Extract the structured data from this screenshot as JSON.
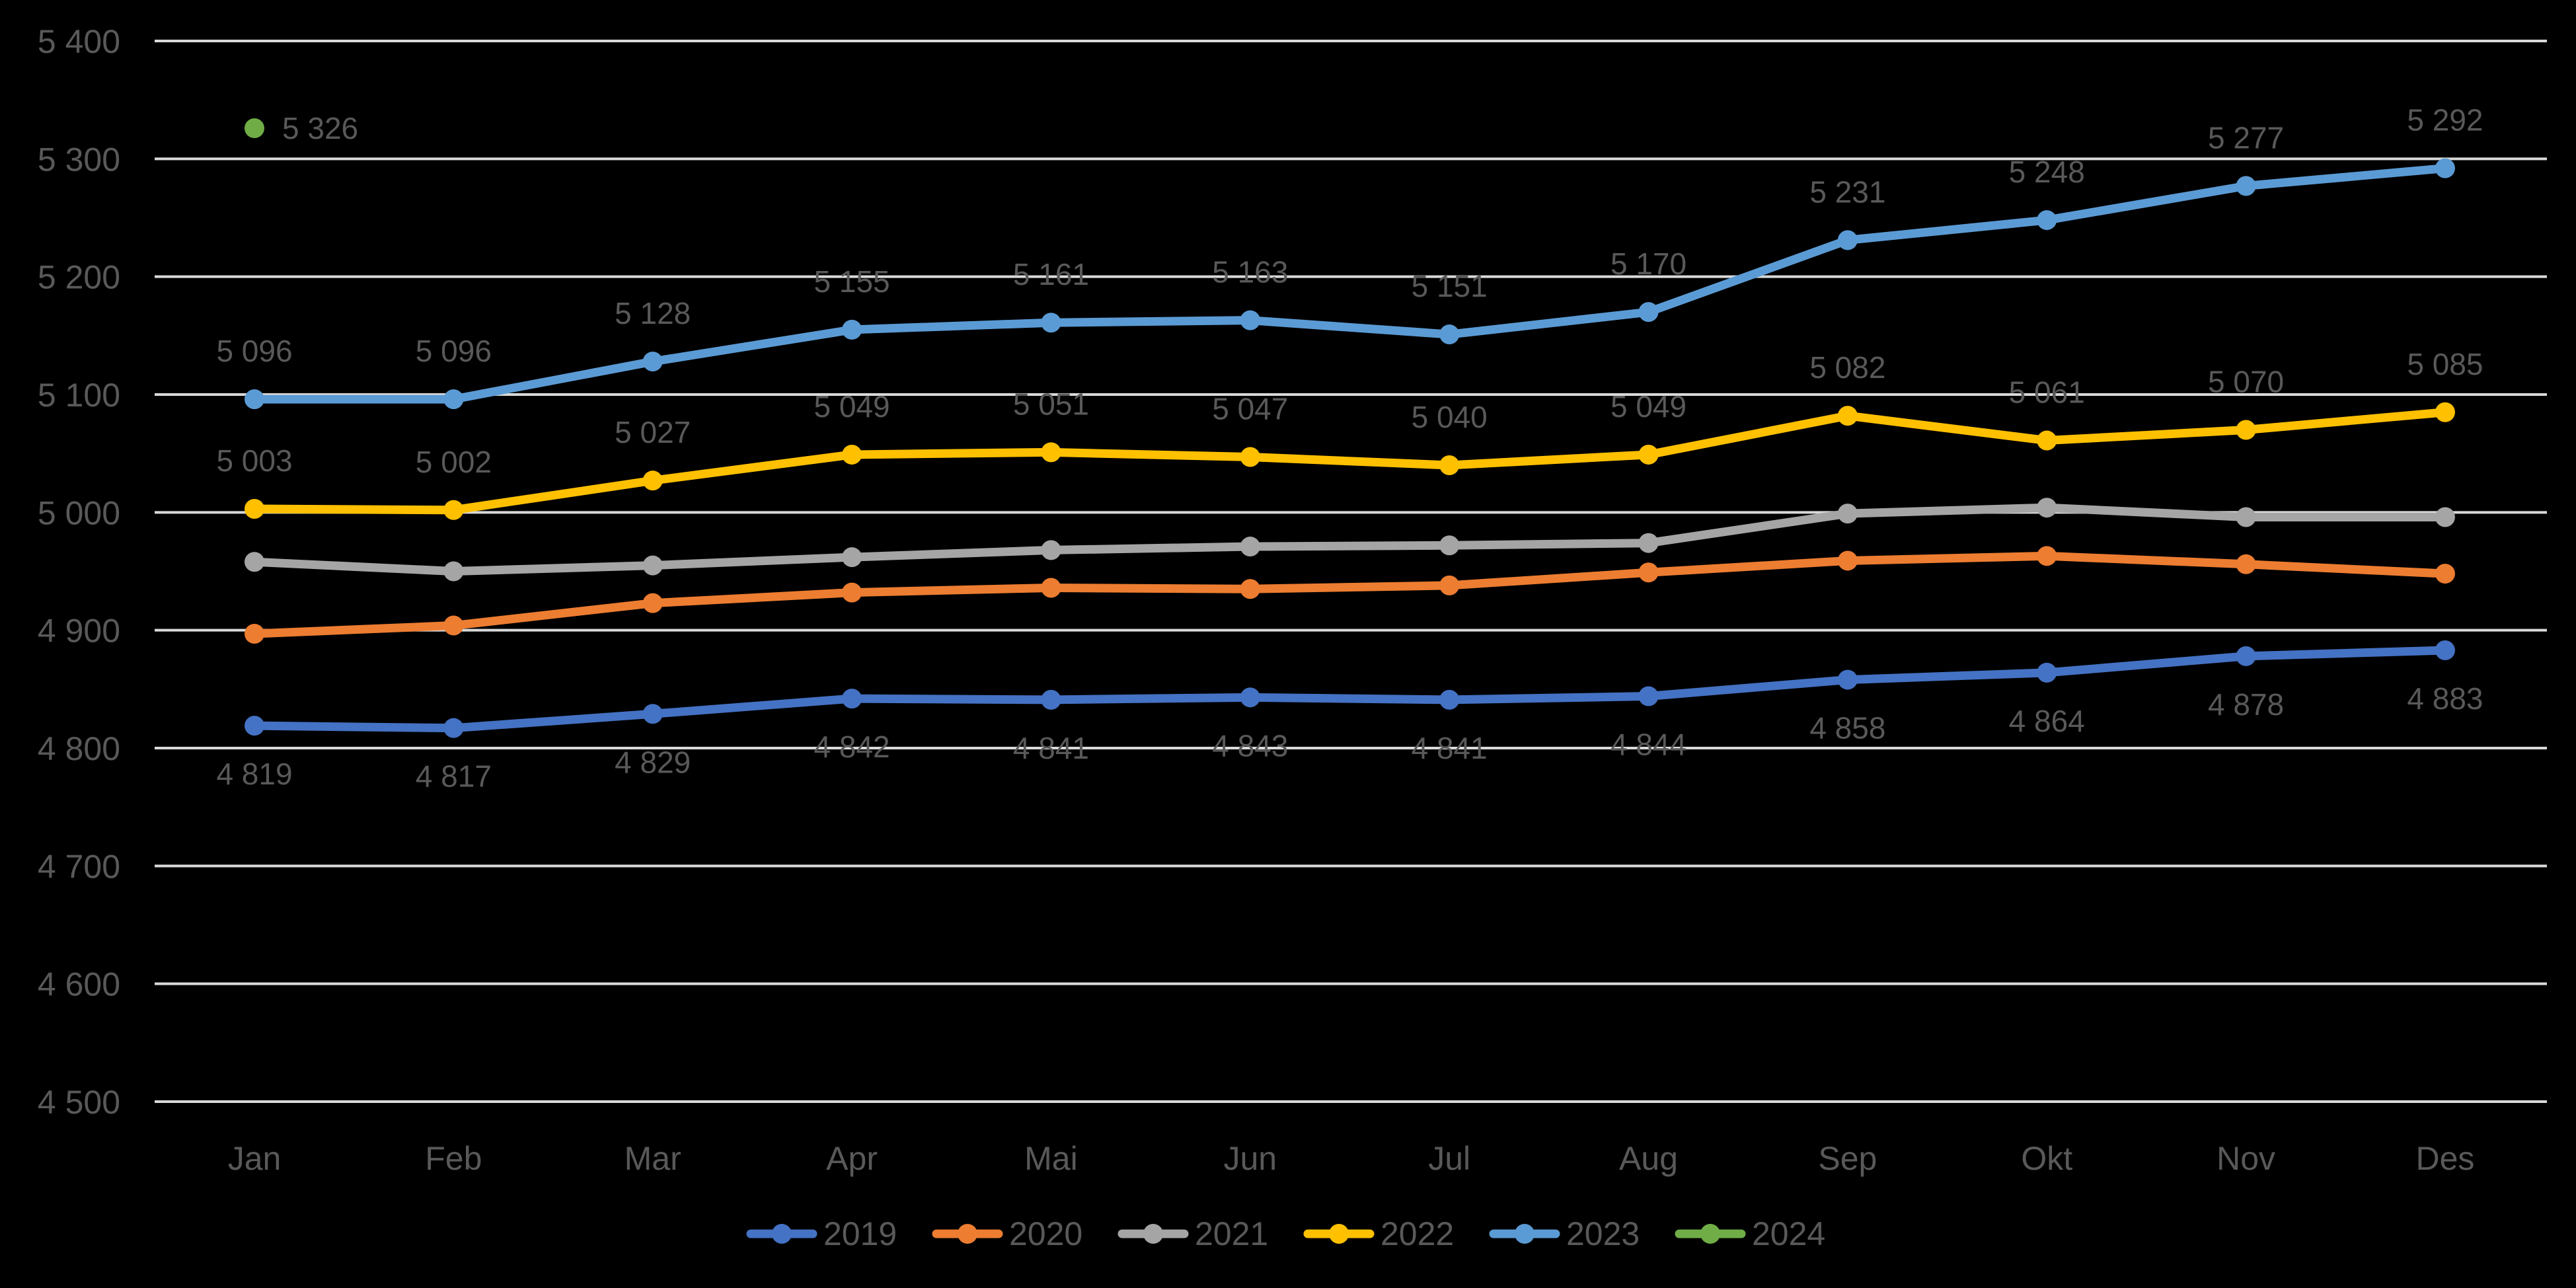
{
  "chart_data": {
    "type": "line",
    "title": "",
    "categories": [
      "Jan",
      "Feb",
      "Mar",
      "Apr",
      "Mai",
      "Jun",
      "Jul",
      "Aug",
      "Sep",
      "Okt",
      "Nov",
      "Des"
    ],
    "y_axis": {
      "min": 4500,
      "max": 5400,
      "step": 100,
      "tick_values": [
        5400,
        5300,
        5200,
        5100,
        5000,
        4900,
        4800,
        4700,
        4600,
        4500
      ],
      "tick_labels": [
        "5 400",
        "5 300",
        "5 200",
        "5 100",
        "5 000",
        "4 900",
        "4 800",
        "4 700",
        "4 600",
        "4 500"
      ]
    },
    "grid": true,
    "legend_position": "bottom",
    "colors": {
      "background": "#000000",
      "gridline": "#D9D9D9",
      "text": "#595959"
    },
    "series": [
      {
        "name": "2019",
        "color": "#4472C4",
        "values": [
          4819,
          4817,
          4829,
          4842,
          4841,
          4843,
          4841,
          4844,
          4858,
          4864,
          4878,
          4883
        ],
        "data_labels": [
          "4 819",
          "4 817",
          "4 829",
          "4 842",
          "4 841",
          "4 843",
          "4 841",
          "4 844",
          "4 858",
          "4 864",
          "4 878",
          "4 883"
        ],
        "label_position": "below"
      },
      {
        "name": "2020",
        "color": "#ED7D31",
        "values": [
          4897,
          4904,
          4923,
          4932,
          4936,
          4935,
          4938,
          4949,
          4959,
          4963,
          4956,
          4948
        ],
        "label_position": "none"
      },
      {
        "name": "2021",
        "color": "#A5A5A5",
        "values": [
          4958,
          4950,
          4955,
          4962,
          4968,
          4971,
          4972,
          4974,
          4999,
          5004,
          4996,
          4996
        ],
        "label_position": "none"
      },
      {
        "name": "2022",
        "color": "#FFC000",
        "values": [
          5003,
          5002,
          5027,
          5049,
          5051,
          5047,
          5040,
          5049,
          5082,
          5061,
          5070,
          5085
        ],
        "data_labels": [
          "5 003",
          "5 002",
          "5 027",
          "5 049",
          "5 051",
          "5 047",
          "5 040",
          "5 049",
          "5 082",
          "5 061",
          "5 070",
          "5 085"
        ],
        "label_position": "above"
      },
      {
        "name": "2023",
        "color": "#5B9BD5",
        "values": [
          5096,
          5096,
          5128,
          5155,
          5161,
          5163,
          5151,
          5170,
          5231,
          5248,
          5277,
          5292
        ],
        "data_labels": [
          "5 096",
          "5 096",
          "5 128",
          "5 155",
          "5 161",
          "5 163",
          "5 151",
          "5 170",
          "5 231",
          "5 248",
          "5 277",
          "5 292"
        ],
        "label_position": "above"
      },
      {
        "name": "2024",
        "color": "#70AD47",
        "values": [
          5326,
          null,
          null,
          null,
          null,
          null,
          null,
          null,
          null,
          null,
          null,
          null
        ],
        "data_labels": [
          "5 326"
        ],
        "label_position": "right"
      }
    ],
    "legend": [
      "2019",
      "2020",
      "2021",
      "2022",
      "2023",
      "2024"
    ]
  }
}
